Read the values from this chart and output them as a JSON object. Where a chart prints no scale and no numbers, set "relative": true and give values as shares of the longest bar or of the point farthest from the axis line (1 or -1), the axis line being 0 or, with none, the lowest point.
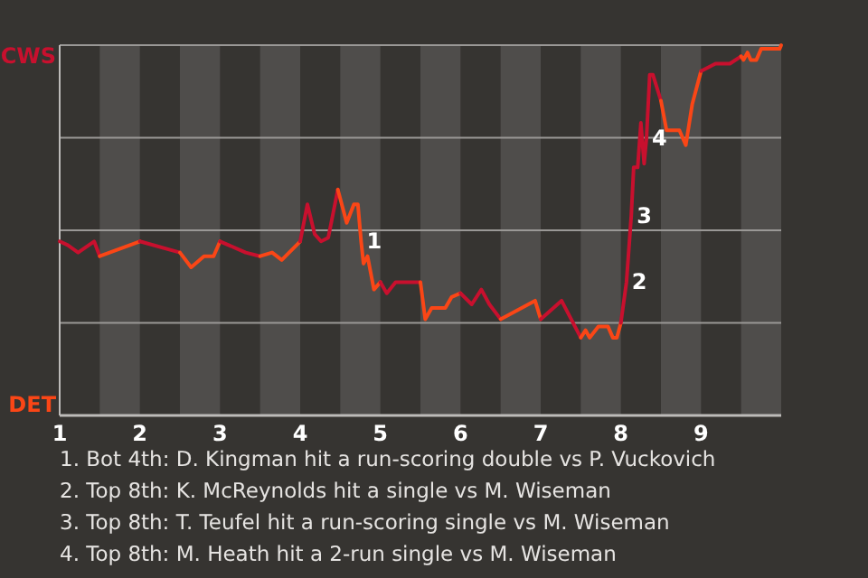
{
  "chart_data": {
    "type": "line",
    "relative": true,
    "series": [
      {
        "color": "#c8102e",
        "x": [
          1.0,
          1.1,
          1.23,
          1.43,
          1.5
        ],
        "values": [
          0.47,
          0.46,
          0.44,
          0.47,
          0.43
        ]
      },
      {
        "color": "#fa4616",
        "x": [
          1.5,
          2.0
        ],
        "values": [
          0.43,
          0.47
        ]
      },
      {
        "color": "#c8102e",
        "x": [
          2.0,
          2.5
        ],
        "values": [
          0.47,
          0.44
        ]
      },
      {
        "color": "#fa4616",
        "x": [
          2.5,
          2.64,
          2.8,
          2.92,
          3.0
        ],
        "values": [
          0.44,
          0.4,
          0.43,
          0.43,
          0.47
        ]
      },
      {
        "color": "#c8102e",
        "x": [
          3.0,
          3.32,
          3.5
        ],
        "values": [
          0.47,
          0.44,
          0.43
        ]
      },
      {
        "color": "#fa4616",
        "x": [
          3.5,
          3.65,
          3.77,
          4.0
        ],
        "values": [
          0.43,
          0.44,
          0.42,
          0.47
        ]
      },
      {
        "color": "#c8102e",
        "x": [
          4.0,
          4.09,
          4.18,
          4.26,
          4.35,
          4.47
        ],
        "values": [
          0.47,
          0.57,
          0.49,
          0.47,
          0.48,
          0.61
        ]
      },
      {
        "color": "#fa4616",
        "x": [
          4.47,
          4.58,
          4.67,
          4.72,
          4.76,
          4.79,
          4.84,
          4.92,
          5.0
        ],
        "values": [
          0.61,
          0.52,
          0.57,
          0.57,
          0.47,
          0.41,
          0.43,
          0.34,
          0.36
        ]
      },
      {
        "color": "#c8102e",
        "x": [
          5.0,
          5.08,
          5.19,
          5.5
        ],
        "values": [
          0.36,
          0.33,
          0.36,
          0.36
        ]
      },
      {
        "color": "#fa4616",
        "x": [
          5.5,
          5.56,
          5.64,
          5.81,
          5.89,
          6.0
        ],
        "values": [
          0.36,
          0.26,
          0.29,
          0.29,
          0.32,
          0.33
        ]
      },
      {
        "color": "#c8102e",
        "x": [
          6.0,
          6.14,
          6.26,
          6.36,
          6.5
        ],
        "values": [
          0.33,
          0.3,
          0.34,
          0.3,
          0.26
        ]
      },
      {
        "color": "#fa4616",
        "x": [
          6.5,
          6.93,
          7.0
        ],
        "values": [
          0.26,
          0.31,
          0.26
        ]
      },
      {
        "color": "#c8102e",
        "x": [
          7.0,
          7.26,
          7.5
        ],
        "values": [
          0.26,
          0.31,
          0.21
        ]
      },
      {
        "color": "#fa4616",
        "x": [
          7.5,
          7.56,
          7.61,
          7.72,
          7.84,
          7.9,
          7.95,
          8.0
        ],
        "values": [
          0.21,
          0.23,
          0.21,
          0.24,
          0.24,
          0.21,
          0.21,
          0.25
        ]
      },
      {
        "color": "#c8102e",
        "x": [
          8.0,
          8.07,
          8.13,
          8.16,
          8.21,
          8.25,
          8.29,
          8.32,
          8.36,
          8.4,
          8.5
        ],
        "values": [
          0.25,
          0.36,
          0.54,
          0.67,
          0.67,
          0.79,
          0.68,
          0.75,
          0.92,
          0.92,
          0.85
        ]
      },
      {
        "color": "#fa4616",
        "x": [
          8.5,
          8.57,
          8.73,
          8.81,
          8.89,
          9.0
        ],
        "values": [
          0.85,
          0.77,
          0.77,
          0.73,
          0.84,
          0.93
        ]
      },
      {
        "color": "#c8102e",
        "x": [
          9.0,
          9.18,
          9.36,
          9.5
        ],
        "values": [
          0.93,
          0.95,
          0.95,
          0.97
        ]
      },
      {
        "color": "#fa4616",
        "x": [
          9.5,
          9.53,
          9.58,
          9.62,
          9.69,
          9.75,
          9.98,
          10.0
        ],
        "values": [
          0.97,
          0.96,
          0.98,
          0.96,
          0.96,
          0.99,
          0.99,
          1.0
        ]
      }
    ],
    "xlim": [
      1,
      10
    ],
    "xticks": [
      1,
      2,
      3,
      4,
      5,
      6,
      7,
      8,
      9
    ],
    "marker": "none",
    "line_style": "solid",
    "ref_lines": [
      {
        "axis": "y",
        "value": 0.25,
        "color": "#9a9896"
      },
      {
        "axis": "y",
        "value": 0.5,
        "color": "#9a9896"
      },
      {
        "axis": "y",
        "value": 0.75,
        "color": "#9a9896"
      },
      {
        "axis": "y",
        "value": 1,
        "color": "#9a9896"
      }
    ],
    "bands": [
      {
        "axis": "x",
        "from": 1.5,
        "to": 2,
        "color": "#4f4d4b"
      },
      {
        "axis": "x",
        "from": 2.5,
        "to": 3,
        "color": "#4f4d4b"
      },
      {
        "axis": "x",
        "from": 3.5,
        "to": 4,
        "color": "#4f4d4b"
      },
      {
        "axis": "x",
        "from": 4.5,
        "to": 5,
        "color": "#4f4d4b"
      },
      {
        "axis": "x",
        "from": 5.5,
        "to": 6,
        "color": "#4f4d4b"
      },
      {
        "axis": "x",
        "from": 6.5,
        "to": 7,
        "color": "#4f4d4b"
      },
      {
        "axis": "x",
        "from": 7.5,
        "to": 8,
        "color": "#4f4d4b"
      },
      {
        "axis": "x",
        "from": 8.5,
        "to": 9,
        "color": "#4f4d4b"
      },
      {
        "axis": "x",
        "from": 9.5,
        "to": 10,
        "color": "#4f4d4b"
      }
    ],
    "annotations": [
      "CWS",
      "DET",
      {
        "text": "1",
        "x": 4.76,
        "y": 0.47
      },
      {
        "text": "2",
        "x": 8.07,
        "y": 0.36
      },
      {
        "text": "3",
        "x": 8.13,
        "y": 0.54
      },
      {
        "text": "4",
        "x": 8.32,
        "y": 0.75
      },
      "1. Bot 4th: D. Kingman hit a run-scoring double vs P. Vuckovich",
      "2. Top 8th: K. McReynolds hit a single vs M. Wiseman",
      "3. Top 8th: T. Teufel hit a run-scoring single vs M. Wiseman",
      "4. Top 8th: M. Heath hit a 2-run single vs M. Wiseman"
    ]
  }
}
